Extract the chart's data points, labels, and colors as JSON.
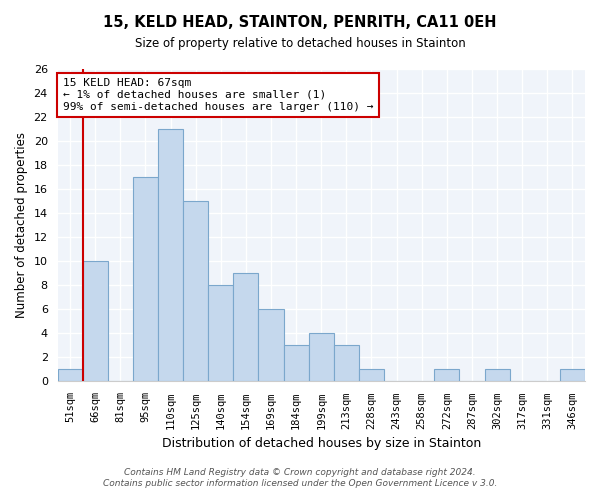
{
  "title": "15, KELD HEAD, STAINTON, PENRITH, CA11 0EH",
  "subtitle": "Size of property relative to detached houses in Stainton",
  "xlabel": "Distribution of detached houses by size in Stainton",
  "ylabel": "Number of detached properties",
  "bin_labels": [
    "51sqm",
    "66sqm",
    "81sqm",
    "95sqm",
    "110sqm",
    "125sqm",
    "140sqm",
    "154sqm",
    "169sqm",
    "184sqm",
    "199sqm",
    "213sqm",
    "228sqm",
    "243sqm",
    "258sqm",
    "272sqm",
    "287sqm",
    "302sqm",
    "317sqm",
    "331sqm",
    "346sqm"
  ],
  "bar_heights": [
    1,
    10,
    0,
    17,
    21,
    15,
    8,
    9,
    6,
    3,
    4,
    3,
    1,
    0,
    0,
    1,
    0,
    1,
    0,
    0,
    1
  ],
  "bar_color": "#c5d8ed",
  "bar_edge_color": "#7ba7cc",
  "highlight_line_color": "#cc0000",
  "highlight_index": 1,
  "ylim": [
    0,
    26
  ],
  "yticks": [
    0,
    2,
    4,
    6,
    8,
    10,
    12,
    14,
    16,
    18,
    20,
    22,
    24,
    26
  ],
  "annotation_title": "15 KELD HEAD: 67sqm",
  "annotation_line1": "← 1% of detached houses are smaller (1)",
  "annotation_line2": "99% of semi-detached houses are larger (110) →",
  "annotation_box_color": "#cc0000",
  "footer1": "Contains HM Land Registry data © Crown copyright and database right 2024.",
  "footer2": "Contains public sector information licensed under the Open Government Licence v 3.0.",
  "bg_color": "#f0f4fa"
}
